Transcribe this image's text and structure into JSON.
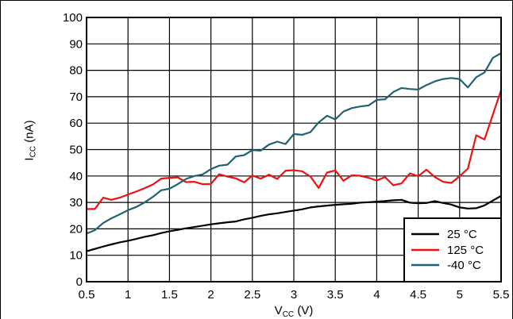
{
  "chart_data": {
    "type": "line",
    "xlabel_main": "V",
    "xlabel_sub": "CC",
    "xlabel_unit": " (V)",
    "ylabel_main": "I",
    "ylabel_sub": "CC",
    "ylabel_unit": " (nA)",
    "xlim": [
      0.5,
      5.5
    ],
    "ylim": [
      0,
      100
    ],
    "grid": true,
    "legend_position": "bottom-right",
    "x_ticks": [
      "0.5",
      "1",
      "1.5",
      "2",
      "2.5",
      "3",
      "3.5",
      "4",
      "4.5",
      "5",
      "5.5"
    ],
    "y_ticks": [
      "0",
      "10",
      "20",
      "30",
      "40",
      "50",
      "60",
      "70",
      "80",
      "90",
      "100"
    ],
    "series": [
      {
        "name": "25 °C",
        "color": "#000000",
        "x": [
          0.5,
          0.6,
          0.7,
          0.8,
          0.9,
          1.0,
          1.1,
          1.2,
          1.3,
          1.4,
          1.5,
          1.6,
          1.7,
          1.8,
          1.9,
          2.0,
          2.1,
          2.2,
          2.3,
          2.4,
          2.5,
          2.6,
          2.7,
          2.8,
          2.9,
          3.0,
          3.1,
          3.2,
          3.3,
          3.4,
          3.5,
          3.6,
          3.7,
          3.8,
          3.9,
          4.0,
          4.1,
          4.2,
          4.3,
          4.4,
          4.5,
          4.6,
          4.7,
          4.8,
          4.9,
          5.0,
          5.1,
          5.2,
          5.3,
          5.4,
          5.5
        ],
        "y": [
          11.5,
          12.4,
          13.3,
          14.1,
          14.9,
          15.5,
          16.2,
          17.0,
          17.6,
          18.4,
          19.1,
          19.6,
          20.2,
          20.7,
          21.2,
          21.7,
          22.1,
          22.5,
          22.8,
          23.6,
          24.2,
          24.9,
          25.5,
          25.9,
          26.4,
          26.9,
          27.4,
          28.1,
          28.5,
          28.8,
          29.1,
          29.3,
          29.5,
          29.9,
          30.1,
          30.3,
          30.5,
          30.8,
          31.0,
          29.9,
          29.7,
          29.8,
          30.5,
          29.8,
          29.2,
          28.1,
          27.7,
          27.8,
          28.9,
          30.7,
          32.5
        ]
      },
      {
        "name": "125 °C",
        "color": "#ee1111",
        "x": [
          0.5,
          0.6,
          0.7,
          0.8,
          0.9,
          1.0,
          1.1,
          1.2,
          1.3,
          1.4,
          1.5,
          1.6,
          1.7,
          1.8,
          1.9,
          2.0,
          2.1,
          2.2,
          2.3,
          2.4,
          2.5,
          2.6,
          2.7,
          2.8,
          2.9,
          3.0,
          3.1,
          3.2,
          3.3,
          3.4,
          3.5,
          3.6,
          3.7,
          3.8,
          3.9,
          4.0,
          4.1,
          4.2,
          4.3,
          4.4,
          4.5,
          4.6,
          4.7,
          4.8,
          4.9,
          5.0,
          5.1,
          5.2,
          5.3,
          5.4,
          5.5
        ],
        "y": [
          27.5,
          27.5,
          31.8,
          31.0,
          31.8,
          33.0,
          34.1,
          35.4,
          36.8,
          39.0,
          39.3,
          39.5,
          37.7,
          37.8,
          36.9,
          37.0,
          40.7,
          39.8,
          39.1,
          37.6,
          40.2,
          39.0,
          40.5,
          38.9,
          42.0,
          42.2,
          41.8,
          39.8,
          35.5,
          41.3,
          42.1,
          38.2,
          40.3,
          40.1,
          39.3,
          38.3,
          39.6,
          36.5,
          37.2,
          41.0,
          39.9,
          42.4,
          39.6,
          37.8,
          37.4,
          39.9,
          42.8,
          55.4,
          53.8,
          63.2,
          72.5
        ]
      },
      {
        "name": "-40 °C",
        "color": "#1f6271",
        "x": [
          0.5,
          0.6,
          0.7,
          0.8,
          0.9,
          1.0,
          1.1,
          1.2,
          1.3,
          1.4,
          1.5,
          1.6,
          1.7,
          1.8,
          1.9,
          2.0,
          2.1,
          2.2,
          2.3,
          2.4,
          2.5,
          2.6,
          2.7,
          2.8,
          2.9,
          3.0,
          3.1,
          3.2,
          3.3,
          3.4,
          3.5,
          3.6,
          3.7,
          3.8,
          3.9,
          4.0,
          4.1,
          4.2,
          4.3,
          4.4,
          4.5,
          4.6,
          4.7,
          4.8,
          4.9,
          5.0,
          5.1,
          5.2,
          5.3,
          5.4,
          5.5
        ],
        "y": [
          18.2,
          19.5,
          22.2,
          24.0,
          25.5,
          27.1,
          28.3,
          30.0,
          32.1,
          34.6,
          35.2,
          36.9,
          38.9,
          40.0,
          40.6,
          42.6,
          43.9,
          44.3,
          47.4,
          47.9,
          49.8,
          49.6,
          51.9,
          53.0,
          52.1,
          55.9,
          55.6,
          56.6,
          60.3,
          62.8,
          61.4,
          64.4,
          65.7,
          66.3,
          66.7,
          68.8,
          69.0,
          71.8,
          73.3,
          72.9,
          72.7,
          74.4,
          75.8,
          76.7,
          77.1,
          76.7,
          73.5,
          77.4,
          79.2,
          84.7,
          86.5
        ]
      }
    ]
  }
}
